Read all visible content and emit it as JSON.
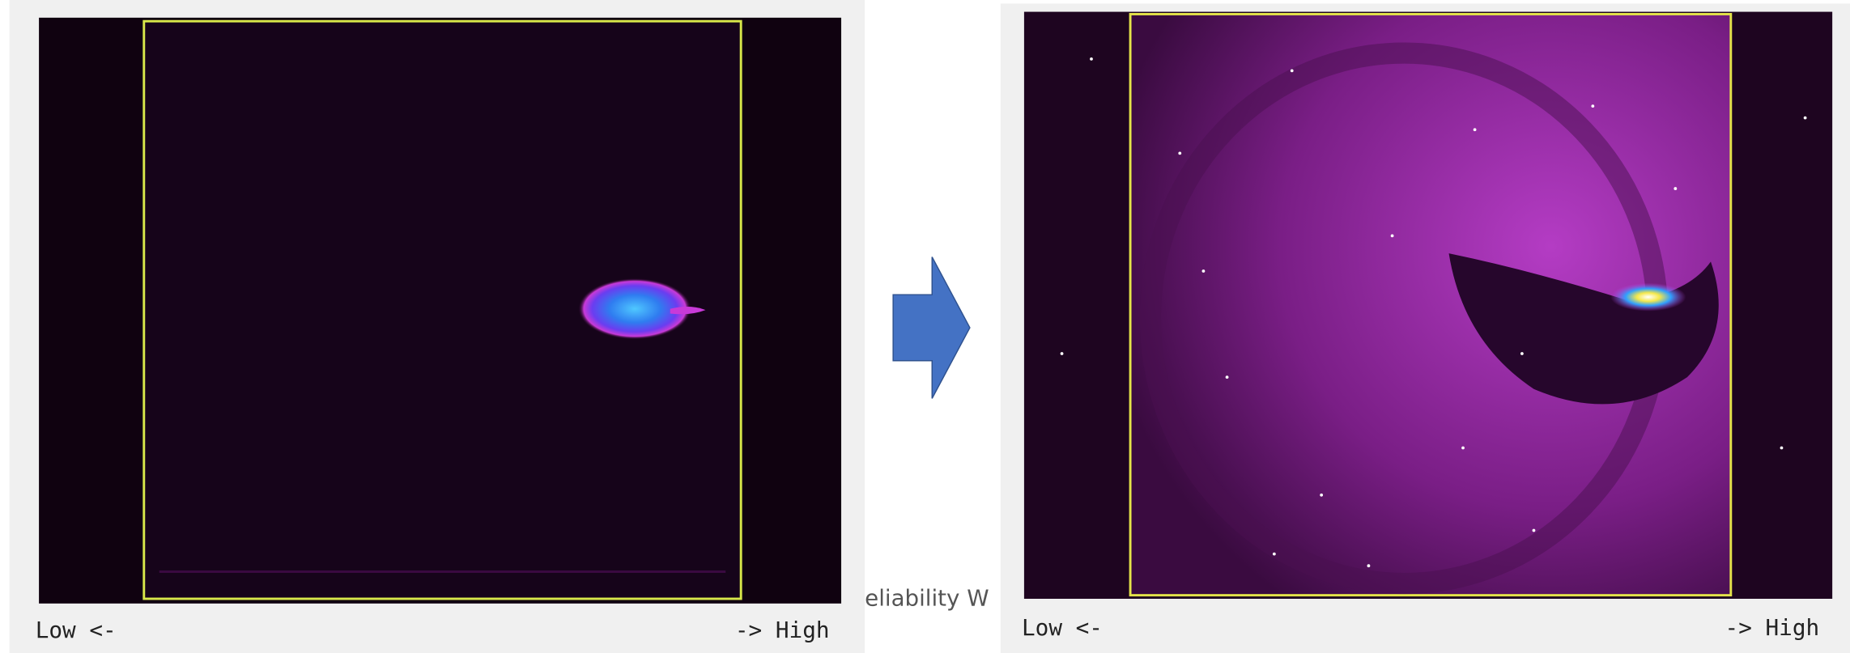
{
  "left_panel": {
    "low_label": "Low <-",
    "high_label": "-> High"
  },
  "occluded_text": "eliability W",
  "right_panel": {
    "low_label": "Low <-",
    "high_label": "-> High"
  }
}
